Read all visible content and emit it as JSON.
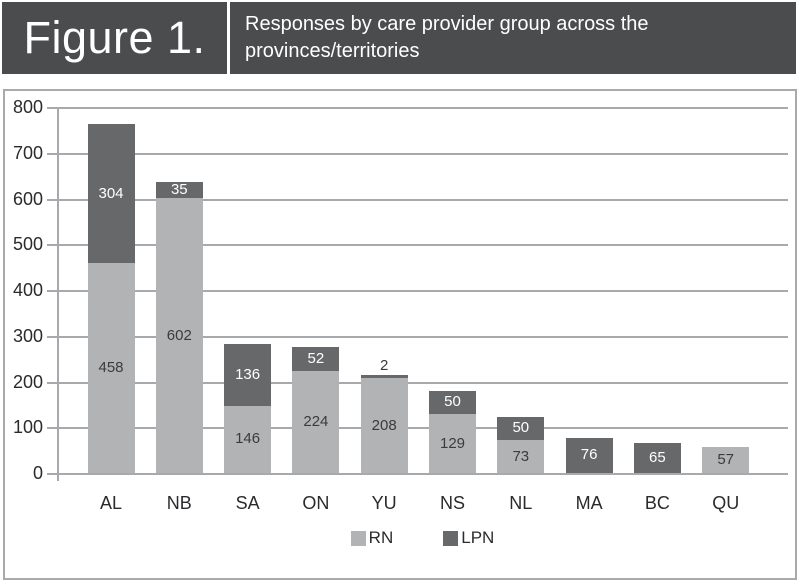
{
  "header": {
    "figure_label": "Figure 1.",
    "title": "Responses by care provider group across the provinces/territories"
  },
  "colors": {
    "header_bg": "#4b4c4e",
    "rn": "#b2b3b5",
    "lpn": "#67686a",
    "gridline": "#a7a9ac",
    "frame_border": "#a8aaad",
    "axis_text": "#2b2b2e",
    "label_on_light": "#3b3b3d",
    "label_on_dark": "#ffffff"
  },
  "chart_data": {
    "type": "bar",
    "stacked": true,
    "title": "Responses by care provider group across the provinces/territories",
    "xlabel": "",
    "ylabel": "",
    "categories": [
      "AL",
      "NB",
      "SA",
      "ON",
      "YU",
      "NS",
      "NL",
      "MA",
      "BC",
      "QU"
    ],
    "series": [
      {
        "name": "RN",
        "color_key": "rn",
        "values": [
          458,
          602,
          146,
          224,
          208,
          129,
          73,
          0,
          0,
          57
        ]
      },
      {
        "name": "LPN",
        "color_key": "lpn",
        "values": [
          304,
          35,
          136,
          52,
          2,
          50,
          50,
          76,
          65,
          0
        ]
      }
    ],
    "ylim": [
      0,
      800
    ],
    "ytick_step": 100,
    "ytick_labels": [
      "0",
      "100",
      "200",
      "300",
      "400",
      "500",
      "600",
      "700",
      "800"
    ],
    "grid": true,
    "legend_position": "bottom-center",
    "data_labels_shown": true
  }
}
